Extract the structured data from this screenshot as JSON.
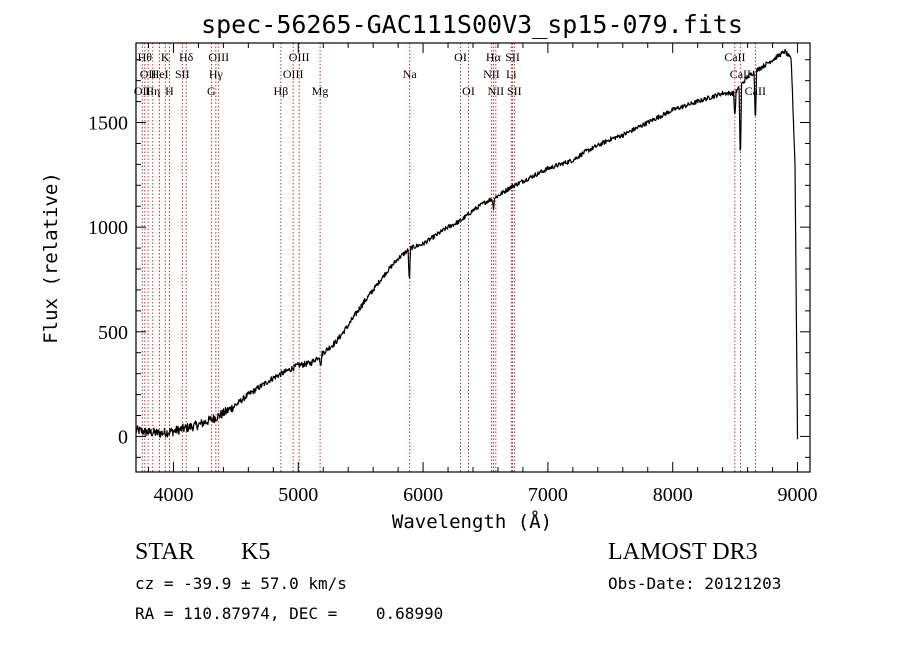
{
  "chart_data": {
    "type": "line",
    "title": "spec-56265-GAC111S00V3_sp15-079.fits",
    "xlabel": "Wavelength (Å)",
    "ylabel": "Flux (relative)",
    "xlim": [
      3700,
      9100
    ],
    "ylim": [
      -170,
      1880
    ],
    "xticks": [
      4000,
      5000,
      6000,
      7000,
      8000,
      9000
    ],
    "yticks": [
      0,
      500,
      1000,
      1500
    ],
    "xtick_labels": [
      "4000",
      "5000",
      "6000",
      "7000",
      "8000",
      "9000"
    ],
    "ytick_labels": [
      "0",
      "500",
      "1000",
      "1500"
    ],
    "series": [
      {
        "name": "spectrum",
        "x": [
          3700,
          3800,
          3900,
          4000,
          4100,
          4200,
          4300,
          4400,
          4500,
          4600,
          4700,
          4800,
          4900,
          5000,
          5100,
          5200,
          5300,
          5400,
          5500,
          5600,
          5700,
          5800,
          5900,
          6000,
          6100,
          6200,
          6300,
          6400,
          6500,
          6600,
          6700,
          6800,
          6900,
          7000,
          7100,
          7200,
          7300,
          7400,
          7500,
          7600,
          7700,
          7800,
          7900,
          8000,
          8100,
          8200,
          8300,
          8400,
          8500,
          8600,
          8700,
          8800,
          8900,
          8950,
          8980,
          9000
        ],
        "y": [
          30,
          20,
          15,
          25,
          40,
          55,
          80,
          110,
          150,
          200,
          240,
          280,
          310,
          340,
          350,
          400,
          450,
          530,
          620,
          700,
          780,
          850,
          900,
          920,
          960,
          1000,
          1030,
          1080,
          1120,
          1150,
          1190,
          1220,
          1250,
          1280,
          1300,
          1320,
          1360,
          1390,
          1420,
          1440,
          1470,
          1500,
          1530,
          1560,
          1580,
          1600,
          1620,
          1640,
          1640,
          1720,
          1760,
          1800,
          1840,
          1800,
          1300,
          -10
        ]
      }
    ],
    "absorption_dips": [
      {
        "x": 5180,
        "depth": 60
      },
      {
        "x": 5890,
        "depth": 170
      },
      {
        "x": 6563,
        "depth": 50
      },
      {
        "x": 8498,
        "depth": 120
      },
      {
        "x": 8542,
        "depth": 380
      },
      {
        "x": 8662,
        "depth": 250
      }
    ],
    "lines": [
      {
        "x": 3750,
        "label": "OII",
        "row": 2
      },
      {
        "x": 3771,
        "label": "Hθ",
        "row": 0
      },
      {
        "x": 3797,
        "label": "OII",
        "row": 1
      },
      {
        "x": 3835,
        "label": "Hη",
        "row": 2
      },
      {
        "x": 3889,
        "label": "HeI",
        "row": 1
      },
      {
        "x": 3934,
        "label": "K",
        "row": 0
      },
      {
        "x": 3968,
        "label": "H",
        "row": 2
      },
      {
        "x": 4071,
        "label": "SII",
        "row": 1
      },
      {
        "x": 4102,
        "label": "Hδ",
        "row": 0
      },
      {
        "x": 4304,
        "label": "G",
        "row": 2
      },
      {
        "x": 4340,
        "label": "Hγ",
        "row": 1
      },
      {
        "x": 4363,
        "label": "OIII",
        "row": 0
      },
      {
        "x": 4861,
        "label": "Hβ",
        "row": 2
      },
      {
        "x": 4959,
        "label": "OIII",
        "row": 1
      },
      {
        "x": 5007,
        "label": "OIII",
        "row": 0
      },
      {
        "x": 5175,
        "label": "Mg",
        "row": 2
      },
      {
        "x": 5893,
        "label": "Na",
        "row": 1
      },
      {
        "x": 6300,
        "label": "OI",
        "row": 0
      },
      {
        "x": 6364,
        "label": "OI",
        "row": 2
      },
      {
        "x": 6548,
        "label": "NII",
        "row": 1
      },
      {
        "x": 6563,
        "label": "Hα",
        "row": 0
      },
      {
        "x": 6583,
        "label": "NII",
        "row": 2
      },
      {
        "x": 6707,
        "label": "Li",
        "row": 1
      },
      {
        "x": 6717,
        "label": "SII",
        "row": 0
      },
      {
        "x": 6731,
        "label": "SII",
        "row": 2
      },
      {
        "x": 8498,
        "label": "CaII",
        "row": 0
      },
      {
        "x": 8542,
        "label": "CaII",
        "row": 1
      },
      {
        "x": 8662,
        "label": "CaII",
        "row": 2
      }
    ],
    "colors": {
      "spectrum": "#000000",
      "line_markers": "#b00000",
      "axes": "#000000"
    }
  },
  "info": {
    "object_class": "STAR",
    "subclass": "K5",
    "survey": "LAMOST DR3",
    "cz": "cz = -39.9 ± 57.0 km/s",
    "obs_date": "Obs-Date: 20121203",
    "coords": "RA = 110.87974, DEC =    0.68990"
  }
}
